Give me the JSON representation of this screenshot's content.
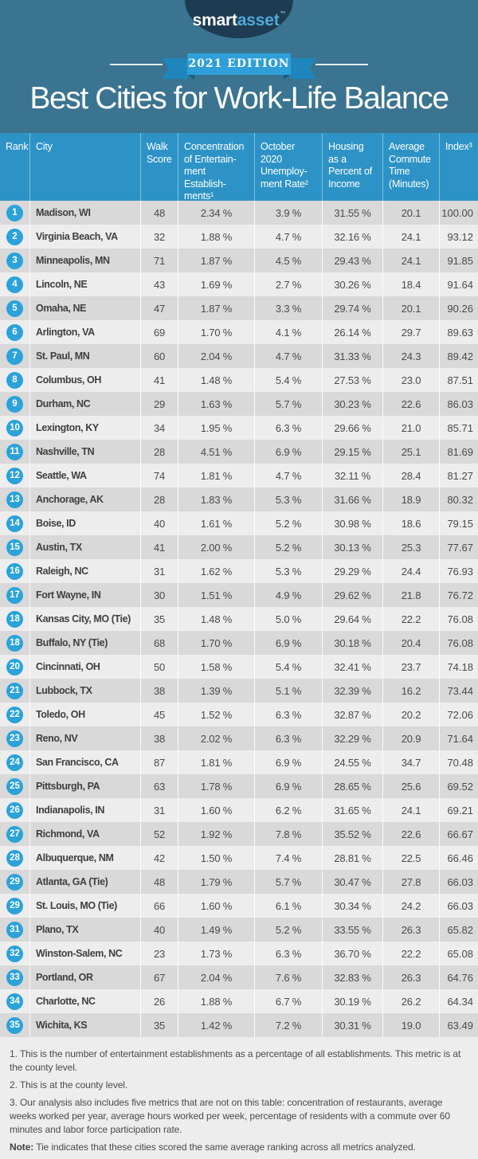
{
  "brand": {
    "logo_smart": "smart",
    "logo_asset": "asset",
    "trademark": "™"
  },
  "hero": {
    "edition_badge": "2021 EDITION",
    "title": "Best Cities for Work-Life Balance"
  },
  "colors": {
    "hero_background": "#3A7490",
    "logo_oval": "#1D3C52",
    "logo_asset_blue": "#4FA9D8",
    "ribbon_blue": "#2F9FD9",
    "ribbon_tail_blue": "#1E86BD",
    "table_header_blue": "#2D93C6",
    "rank_badge_blue": "#2BA2DA",
    "row_dark_gray": "#D9D9D9",
    "row_light_gray": "#EDEDED",
    "body_text": "#4A4A4A"
  },
  "table": {
    "header_labels": {
      "rank": "Rank",
      "city": "City",
      "walk_score": "Walk\nScore",
      "entertainment": "Concentration\nof Entertain-\nment\nEstablish-\nments¹",
      "unemployment": "October\n2020\nUnemploy-\nment Rate²",
      "housing": "Housing\nas a\nPercent of\nIncome",
      "commute": "Average\nCommute\nTime\n(Minutes)",
      "index": "Index³"
    }
  },
  "chart_data": {
    "type": "table",
    "title": "Best Cities for Work-Life Balance",
    "edition": "2021 EDITION",
    "columns": [
      "Rank",
      "City",
      "Walk Score",
      "Concentration of Entertainment Establishments",
      "October 2020 Unemployment Rate",
      "Housing as a Percent of Income",
      "Average Commute Time (Minutes)",
      "Index"
    ],
    "rows": [
      {
        "rank": "1",
        "city": "Madison, WI",
        "walk_score": "48",
        "entertainment": "2.34 %",
        "unemployment": "3.9 %",
        "housing": "31.55 %",
        "commute": "20.1",
        "index": "100.00"
      },
      {
        "rank": "2",
        "city": "Virginia Beach, VA",
        "walk_score": "32",
        "entertainment": "1.88 %",
        "unemployment": "4.7 %",
        "housing": "32.16 %",
        "commute": "24.1",
        "index": "93.12"
      },
      {
        "rank": "3",
        "city": "Minneapolis, MN",
        "walk_score": "71",
        "entertainment": "1.87 %",
        "unemployment": "4.5 %",
        "housing": "29.43 %",
        "commute": "24.1",
        "index": "91.85"
      },
      {
        "rank": "4",
        "city": "Lincoln, NE",
        "walk_score": "43",
        "entertainment": "1.69 %",
        "unemployment": "2.7 %",
        "housing": "30.26 %",
        "commute": "18.4",
        "index": "91.64"
      },
      {
        "rank": "5",
        "city": "Omaha, NE",
        "walk_score": "47",
        "entertainment": "1.87 %",
        "unemployment": "3.3 %",
        "housing": "29.74 %",
        "commute": "20.1",
        "index": "90.26"
      },
      {
        "rank": "6",
        "city": "Arlington, VA",
        "walk_score": "69",
        "entertainment": "1.70 %",
        "unemployment": "4.1 %",
        "housing": "26.14 %",
        "commute": "29.7",
        "index": "89.63"
      },
      {
        "rank": "7",
        "city": "St. Paul, MN",
        "walk_score": "60",
        "entertainment": "2.04 %",
        "unemployment": "4.7 %",
        "housing": "31.33 %",
        "commute": "24.3",
        "index": "89.42"
      },
      {
        "rank": "8",
        "city": "Columbus, OH",
        "walk_score": "41",
        "entertainment": "1.48 %",
        "unemployment": "5.4 %",
        "housing": "27.53 %",
        "commute": "23.0",
        "index": "87.51"
      },
      {
        "rank": "9",
        "city": "Durham, NC",
        "walk_score": "29",
        "entertainment": "1.63 %",
        "unemployment": "5.7 %",
        "housing": "30.23 %",
        "commute": "22.6",
        "index": "86.03"
      },
      {
        "rank": "10",
        "city": "Lexington, KY",
        "walk_score": "34",
        "entertainment": "1.95 %",
        "unemployment": "6.3 %",
        "housing": "29.66 %",
        "commute": "21.0",
        "index": "85.71"
      },
      {
        "rank": "11",
        "city": "Nashville, TN",
        "walk_score": "28",
        "entertainment": "4.51 %",
        "unemployment": "6.9 %",
        "housing": "29.15 %",
        "commute": "25.1",
        "index": "81.69"
      },
      {
        "rank": "12",
        "city": "Seattle, WA",
        "walk_score": "74",
        "entertainment": "1.81 %",
        "unemployment": "4.7 %",
        "housing": "32.11 %",
        "commute": "28.4",
        "index": "81.27"
      },
      {
        "rank": "13",
        "city": "Anchorage, AK",
        "walk_score": "28",
        "entertainment": "1.83 %",
        "unemployment": "5.3 %",
        "housing": "31.66 %",
        "commute": "18.9",
        "index": "80.32"
      },
      {
        "rank": "14",
        "city": "Boise, ID",
        "walk_score": "40",
        "entertainment": "1.61 %",
        "unemployment": "5.2 %",
        "housing": "30.98 %",
        "commute": "18.6",
        "index": "79.15"
      },
      {
        "rank": "15",
        "city": "Austin, TX",
        "walk_score": "41",
        "entertainment": "2.00 %",
        "unemployment": "5.2 %",
        "housing": "30.13 %",
        "commute": "25.3",
        "index": "77.67"
      },
      {
        "rank": "16",
        "city": "Raleigh, NC",
        "walk_score": "31",
        "entertainment": "1.62 %",
        "unemployment": "5.3 %",
        "housing": "29.29 %",
        "commute": "24.4",
        "index": "76.93"
      },
      {
        "rank": "17",
        "city": "Fort Wayne, IN",
        "walk_score": "30",
        "entertainment": "1.51 %",
        "unemployment": "4.9 %",
        "housing": "29.62 %",
        "commute": "21.8",
        "index": "76.72"
      },
      {
        "rank": "18",
        "city": "Kansas City, MO (Tie)",
        "walk_score": "35",
        "entertainment": "1.48 %",
        "unemployment": "5.0 %",
        "housing": "29.64 %",
        "commute": "22.2",
        "index": "76.08"
      },
      {
        "rank": "18",
        "city": "Buffalo, NY (Tie)",
        "walk_score": "68",
        "entertainment": "1.70 %",
        "unemployment": "6.9 %",
        "housing": "30.18 %",
        "commute": "20.4",
        "index": "76.08"
      },
      {
        "rank": "20",
        "city": "Cincinnati, OH",
        "walk_score": "50",
        "entertainment": "1.58 %",
        "unemployment": "5.4 %",
        "housing": "32.41 %",
        "commute": "23.7",
        "index": "74.18"
      },
      {
        "rank": "21",
        "city": "Lubbock, TX",
        "walk_score": "38",
        "entertainment": "1.39 %",
        "unemployment": "5.1 %",
        "housing": "32.39 %",
        "commute": "16.2",
        "index": "73.44"
      },
      {
        "rank": "22",
        "city": "Toledo, OH",
        "walk_score": "45",
        "entertainment": "1.52 %",
        "unemployment": "6.3 %",
        "housing": "32.87 %",
        "commute": "20.2",
        "index": "72.06"
      },
      {
        "rank": "23",
        "city": "Reno, NV",
        "walk_score": "38",
        "entertainment": "2.02 %",
        "unemployment": "6.3 %",
        "housing": "32.29 %",
        "commute": "20.9",
        "index": "71.64"
      },
      {
        "rank": "24",
        "city": "San Francisco, CA",
        "walk_score": "87",
        "entertainment": "1.81 %",
        "unemployment": "6.9 %",
        "housing": "24.55 %",
        "commute": "34.7",
        "index": "70.48"
      },
      {
        "rank": "25",
        "city": "Pittsburgh, PA",
        "walk_score": "63",
        "entertainment": "1.78 %",
        "unemployment": "6.9 %",
        "housing": "28.65 %",
        "commute": "25.6",
        "index": "69.52"
      },
      {
        "rank": "26",
        "city": "Indianapolis, IN",
        "walk_score": "31",
        "entertainment": "1.60 %",
        "unemployment": "6.2 %",
        "housing": "31.65 %",
        "commute": "24.1",
        "index": "69.21"
      },
      {
        "rank": "27",
        "city": "Richmond, VA",
        "walk_score": "52",
        "entertainment": "1.92 %",
        "unemployment": "7.8 %",
        "housing": "35.52 %",
        "commute": "22.6",
        "index": "66.67"
      },
      {
        "rank": "28",
        "city": "Albuquerque, NM",
        "walk_score": "42",
        "entertainment": "1.50 %",
        "unemployment": "7.4 %",
        "housing": "28.81 %",
        "commute": "22.5",
        "index": "66.46"
      },
      {
        "rank": "29",
        "city": "Atlanta, GA (Tie)",
        "walk_score": "48",
        "entertainment": "1.79 %",
        "unemployment": "5.7 %",
        "housing": "30.47 %",
        "commute": "27.8",
        "index": "66.03"
      },
      {
        "rank": "29",
        "city": "St. Louis, MO (Tie)",
        "walk_score": "66",
        "entertainment": "1.60 %",
        "unemployment": "6.1 %",
        "housing": "30.34 %",
        "commute": "24.2",
        "index": "66.03"
      },
      {
        "rank": "31",
        "city": "Plano, TX",
        "walk_score": "40",
        "entertainment": "1.49 %",
        "unemployment": "5.2 %",
        "housing": "33.55 %",
        "commute": "26.3",
        "index": "65.82"
      },
      {
        "rank": "32",
        "city": "Winston-Salem, NC",
        "walk_score": "23",
        "entertainment": "1.73 %",
        "unemployment": "6.3 %",
        "housing": "36.70 %",
        "commute": "22.2",
        "index": "65.08"
      },
      {
        "rank": "33",
        "city": "Portland, OR",
        "walk_score": "67",
        "entertainment": "2.04 %",
        "unemployment": "7.6 %",
        "housing": "32.83 %",
        "commute": "26.3",
        "index": "64.76"
      },
      {
        "rank": "34",
        "city": "Charlotte, NC",
        "walk_score": "26",
        "entertainment": "1.88 %",
        "unemployment": "6.7 %",
        "housing": "30.19 %",
        "commute": "26.2",
        "index": "64.34"
      },
      {
        "rank": "35",
        "city": "Wichita, KS",
        "walk_score": "35",
        "entertainment": "1.42 %",
        "unemployment": "7.2 %",
        "housing": "30.31 %",
        "commute": "19.0",
        "index": "63.49"
      }
    ]
  },
  "footnotes": {
    "items": [
      "1. This is the number of entertainment establishments as a percentage of all establishments. This metric is at the county level.",
      "2. This is at the county level.",
      "3. Our analysis also includes five metrics that are not on this table: concentration of restaurants, average weeks worked per year, average hours worked per week, percentage of residents with a commute over 60 minutes and labor force participation rate."
    ],
    "note_label": "Note:",
    "note_text": "Tie indicates that these cities scored the same average ranking across all metrics analyzed."
  }
}
